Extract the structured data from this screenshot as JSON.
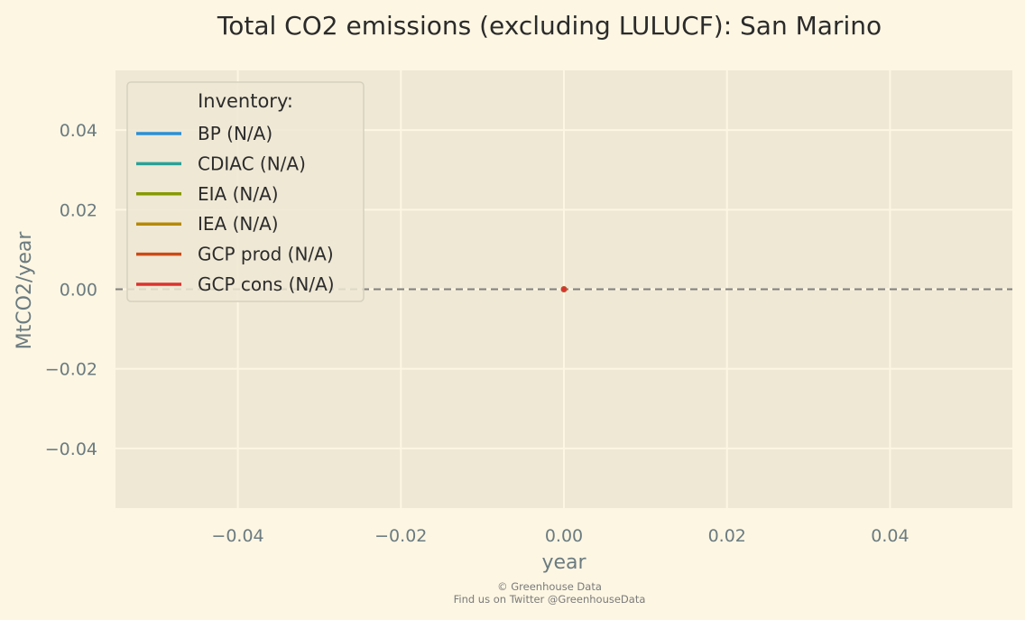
{
  "chart_data": {
    "type": "line",
    "title": "Total CO2 emissions (excluding LULUCF): San Marino",
    "xlabel": "year",
    "ylabel": "MtCO2/year",
    "xlim": [
      -0.055,
      0.055
    ],
    "ylim": [
      -0.055,
      0.055
    ],
    "x_ticks": [
      -0.04,
      -0.02,
      0.0,
      0.02,
      0.04
    ],
    "x_tick_labels": [
      "−0.04",
      "−0.02",
      "0.00",
      "0.02",
      "0.04"
    ],
    "y_ticks": [
      0.04,
      0.02,
      0.0,
      -0.02,
      -0.04
    ],
    "y_tick_labels": [
      "0.04",
      "0.02",
      "0.00",
      "−0.02",
      "−0.04"
    ],
    "grid": true,
    "reference_line": {
      "y": 0,
      "style": "dashed",
      "color": "#808080"
    },
    "legend": {
      "title": "Inventory:",
      "placement": "top-left",
      "entries": [
        {
          "label": "BP (N/A)",
          "color": "#2b8fd6"
        },
        {
          "label": "CDIAC (N/A)",
          "color": "#2aa198"
        },
        {
          "label": "EIA (N/A)",
          "color": "#859900"
        },
        {
          "label": "IEA (N/A)",
          "color": "#b58900"
        },
        {
          "label": "GCP prod (N/A)",
          "color": "#cb4b16"
        },
        {
          "label": "GCP cons (N/A)",
          "color": "#dc322f"
        }
      ]
    },
    "series": [
      {
        "name": "GCP cons (N/A)",
        "color": "#dc322f",
        "x": [
          0
        ],
        "y": [
          0
        ]
      }
    ]
  },
  "footer": {
    "line1": "© Greenhouse Data",
    "line2": "Find us on Twitter @GreenhouseData"
  }
}
